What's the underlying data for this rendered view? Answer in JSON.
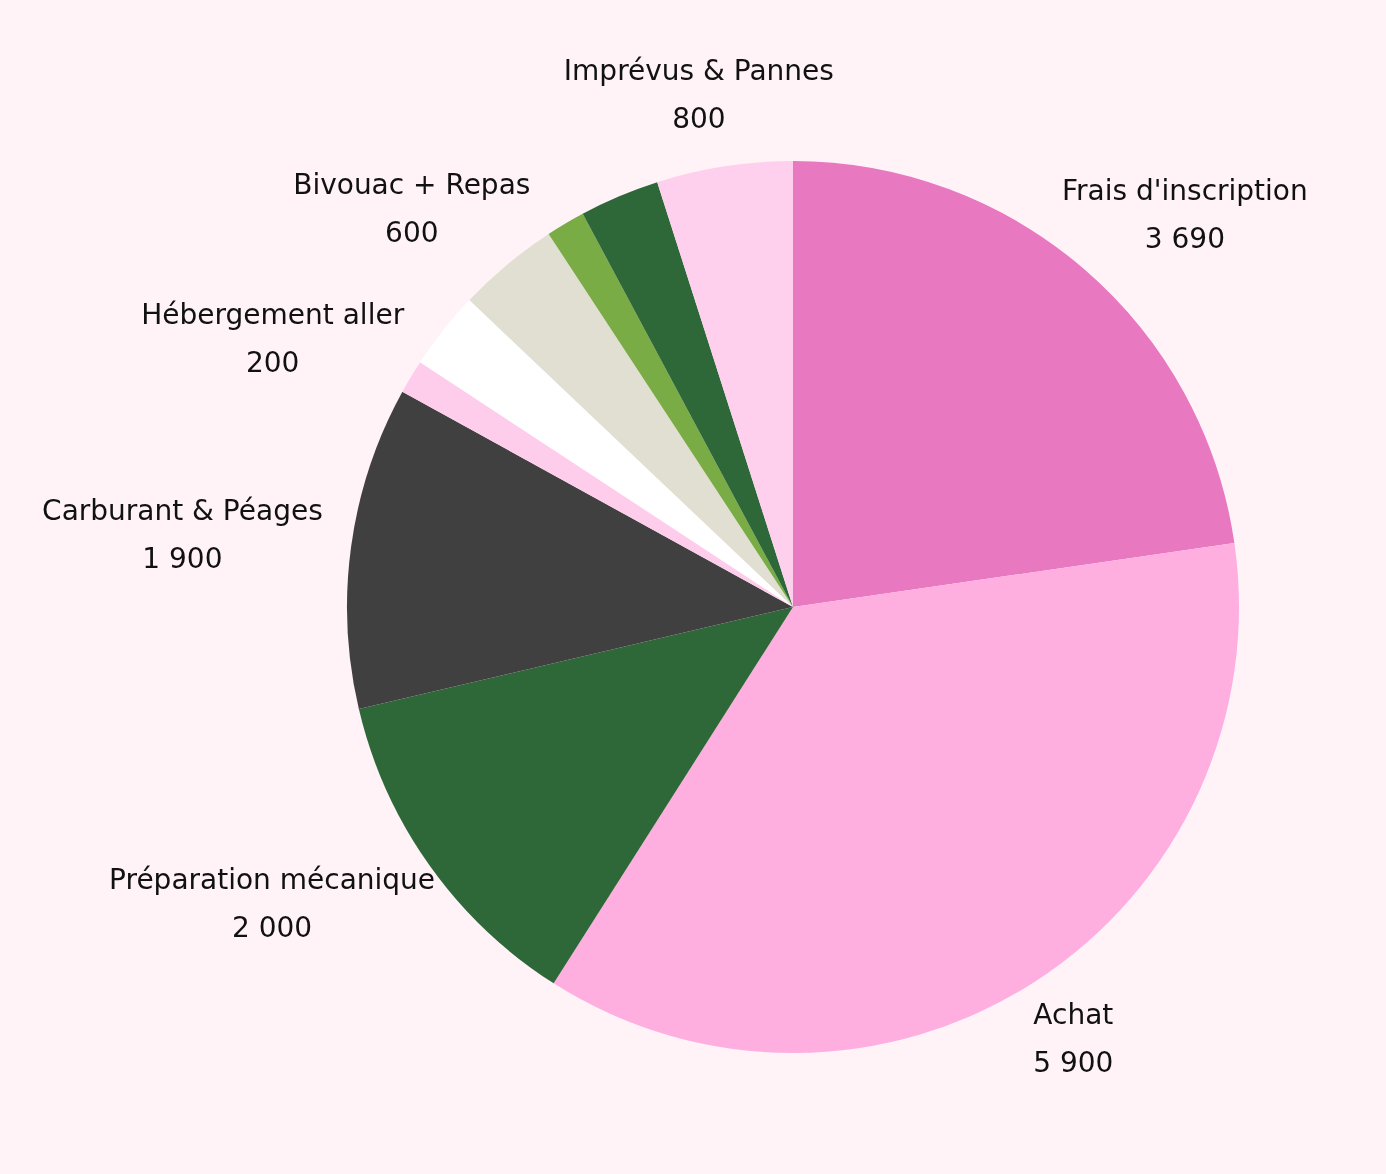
{
  "chart_data": {
    "type": "pie",
    "categories": [
      "Frais d'inscription",
      "Achat",
      "Préparation mécanique",
      "Carburant & Péages",
      "Hébergement aller",
      null,
      "Bivouac + Repas",
      null,
      null,
      "Imprévus & Pannes"
    ],
    "values": [
      3690,
      5900,
      2000,
      1900,
      200,
      460,
      600,
      230,
      470,
      800
    ],
    "value_labels": [
      "3 690",
      "5 900",
      "2 000",
      "1 900",
      "200",
      null,
      "600",
      null,
      null,
      "800"
    ],
    "colors": [
      "#e878c0",
      "#ffaee0",
      "#2e6839",
      "#404040",
      "#ffcdec",
      "#ffffff",
      "#e1dfd1",
      "#79ac45",
      "#2e6839",
      "#ffd0ee"
    ]
  }
}
